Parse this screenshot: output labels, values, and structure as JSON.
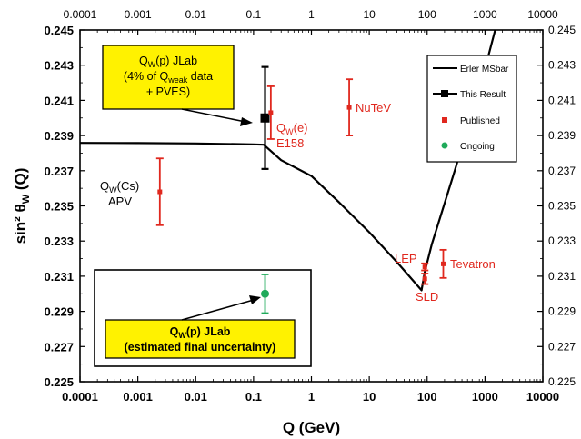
{
  "chart_data": {
    "type": "scatter",
    "x_scale": "log",
    "xlim": [
      0.0001,
      10000
    ],
    "ylim": [
      0.225,
      0.245
    ],
    "xlabel": "Q (GeV)",
    "ylabel": "sin² θ",
    "ylabel_sub": "W",
    "ylabel_suffix": " (Q)",
    "x_ticks": [
      0.0001,
      0.001,
      0.01,
      0.1,
      1,
      10,
      100,
      1000,
      10000
    ],
    "x_tick_labels": [
      "0.0001",
      "0.001",
      "0.01",
      "0.1",
      "1",
      "10",
      "100",
      "1000",
      "10000"
    ],
    "y_ticks": [
      0.225,
      0.227,
      0.229,
      0.231,
      0.233,
      0.235,
      0.237,
      0.239,
      0.241,
      0.243,
      0.245
    ],
    "y_tick_labels": [
      "0.225",
      "0.227",
      "0.229",
      "0.231",
      "0.233",
      "0.235",
      "0.237",
      "0.239",
      "0.241",
      "0.243",
      "0.245"
    ],
    "right_tick_labels": [
      "0.225",
      "0.227",
      "0.229",
      "0.231",
      "0.233",
      "0.235",
      "0.237",
      "0.239",
      "0.241",
      "0.243",
      "0.245"
    ],
    "grid": false,
    "legend_position": "top-right",
    "legend": [
      {
        "label": "Erler MSbar",
        "kind": "line",
        "color": "#000000"
      },
      {
        "label": "This Result",
        "kind": "line-marker",
        "color": "#000000"
      },
      {
        "label": "Published",
        "kind": "marker",
        "color": "#e0281e"
      },
      {
        "label": "Ongoing",
        "kind": "marker",
        "color": "#1faa5a"
      }
    ],
    "series": [
      {
        "name": "Erler MSbar",
        "kind": "line",
        "color": "#000000",
        "points": [
          [
            0.0001,
            0.23858
          ],
          [
            0.001,
            0.23857
          ],
          [
            0.01,
            0.23855
          ],
          [
            0.1,
            0.2385
          ],
          [
            0.15,
            0.23848
          ],
          [
            0.3,
            0.2376
          ],
          [
            1,
            0.2367
          ],
          [
            3,
            0.2352
          ],
          [
            10,
            0.2335
          ],
          [
            30,
            0.2318
          ],
          [
            80,
            0.2302
          ],
          [
            91.2,
            0.23125
          ],
          [
            120,
            0.2328
          ],
          [
            300,
            0.237
          ],
          [
            1000,
            0.2428
          ],
          [
            1500,
            0.245
          ]
        ]
      },
      {
        "name": "This Result",
        "kind": "points",
        "color": "#000000",
        "marker": "square",
        "points": [
          {
            "x": 0.158,
            "y": 0.24,
            "err": 0.0029
          }
        ]
      },
      {
        "name": "Published",
        "kind": "points",
        "color": "#e0281e",
        "marker": "square",
        "points": [
          {
            "x": 0.0024,
            "y": 0.2358,
            "err": 0.0019
          },
          {
            "x": 0.16,
            "y": 0.2403,
            "err": 0.0015
          },
          {
            "x": 4.5,
            "y": 0.2406,
            "err": 0.0016
          },
          {
            "x": 91.2,
            "y": 0.23153,
            "err": 0.0002
          },
          {
            "x": 91.2,
            "y": 0.23085,
            "err": 0.0003
          },
          {
            "x": 190,
            "y": 0.2317,
            "err": 0.0008
          }
        ]
      },
      {
        "name": "Ongoing",
        "kind": "points",
        "color": "#1faa5a",
        "marker": "circle",
        "points": [
          {
            "x": 0.158,
            "y": 0.23,
            "err": 0.0011
          }
        ]
      }
    ],
    "annotations": {
      "cs": {
        "main": "Q",
        "sub": "W",
        "rest": "(Cs)",
        "line2": "APV"
      },
      "e158": {
        "main": "Q",
        "sub": "W",
        "rest": "(e)",
        "line2": "E158"
      },
      "nutev": "NuTeV",
      "lep": "LEP",
      "sld": "SLD",
      "tevatron": "Tevatron",
      "box1": {
        "l1_main": "Q",
        "l1_sub": "W",
        "l1_rest": "(p) JLab",
        "l2_a": "(4% of Q",
        "l2_sub": "weak",
        "l2_b": " data",
        "l3": "+ PVES)"
      },
      "box2": {
        "l1_main": "Q",
        "l1_sub": "W",
        "l1_rest": "(p) JLab",
        "l2": "(estimated final uncertainty)"
      }
    }
  }
}
